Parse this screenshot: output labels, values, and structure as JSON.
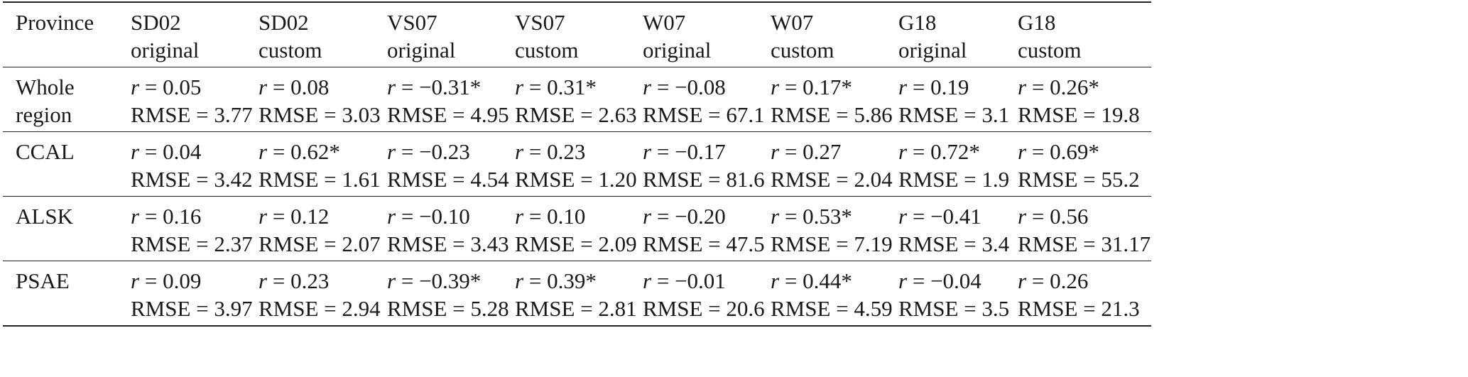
{
  "table": {
    "headers": [
      {
        "line1": "Province",
        "line2": ""
      },
      {
        "line1": "SD02",
        "line2": "original"
      },
      {
        "line1": "SD02",
        "line2": "custom"
      },
      {
        "line1": "VS07",
        "line2": "original"
      },
      {
        "line1": "VS07",
        "line2": "custom"
      },
      {
        "line1": "W07",
        "line2": "original"
      },
      {
        "line1": "W07",
        "line2": "custom"
      },
      {
        "line1": "G18",
        "line2": "original"
      },
      {
        "line1": "G18",
        "line2": "custom"
      }
    ],
    "rows": [
      {
        "province_line1": "Whole",
        "province_line2": "region",
        "cells": [
          {
            "r": "0.05",
            "rmse": "3.77"
          },
          {
            "r": "0.08",
            "rmse": "3.03"
          },
          {
            "r": "−0.31*",
            "rmse": "4.95"
          },
          {
            "r": "0.31*",
            "rmse": "2.63"
          },
          {
            "r": "−0.08",
            "rmse": "67.1"
          },
          {
            "r": "0.17*",
            "rmse": "5.86"
          },
          {
            "r": "0.19",
            "rmse": "3.1"
          },
          {
            "r": "0.26*",
            "rmse": "19.8"
          }
        ]
      },
      {
        "province_line1": "CCAL",
        "province_line2": "",
        "cells": [
          {
            "r": "0.04",
            "rmse": "3.42"
          },
          {
            "r": "0.62*",
            "rmse": "1.61"
          },
          {
            "r": "−0.23",
            "rmse": "4.54"
          },
          {
            "r": "0.23",
            "rmse": "1.20"
          },
          {
            "r": "−0.17",
            "rmse": "81.6"
          },
          {
            "r": "0.27",
            "rmse": "2.04"
          },
          {
            "r": "0.72*",
            "rmse": "1.9"
          },
          {
            "r": "0.69*",
            "rmse": "55.2"
          }
        ]
      },
      {
        "province_line1": "ALSK",
        "province_line2": "",
        "cells": [
          {
            "r": "0.16",
            "rmse": "2.37"
          },
          {
            "r": "0.12",
            "rmse": "2.07"
          },
          {
            "r": "−0.10",
            "rmse": "3.43"
          },
          {
            "r": "0.10",
            "rmse": "2.09"
          },
          {
            "r": "−0.20",
            "rmse": "47.5"
          },
          {
            "r": "0.53*",
            "rmse": "7.19"
          },
          {
            "r": "−0.41",
            "rmse": "3.4"
          },
          {
            "r": "0.56",
            "rmse": "31.17"
          }
        ]
      },
      {
        "province_line1": "PSAE",
        "province_line2": "",
        "cells": [
          {
            "r": "0.09",
            "rmse": "3.97"
          },
          {
            "r": "0.23",
            "rmse": "2.94"
          },
          {
            "r": "−0.39*",
            "rmse": "5.28"
          },
          {
            "r": "0.39*",
            "rmse": "2.81"
          },
          {
            "r": "−0.01",
            "rmse": "20.6"
          },
          {
            "r": "0.44*",
            "rmse": "4.59"
          },
          {
            "r": "−0.04",
            "rmse": "3.5"
          },
          {
            "r": "0.26",
            "rmse": "21.3"
          }
        ]
      }
    ]
  }
}
